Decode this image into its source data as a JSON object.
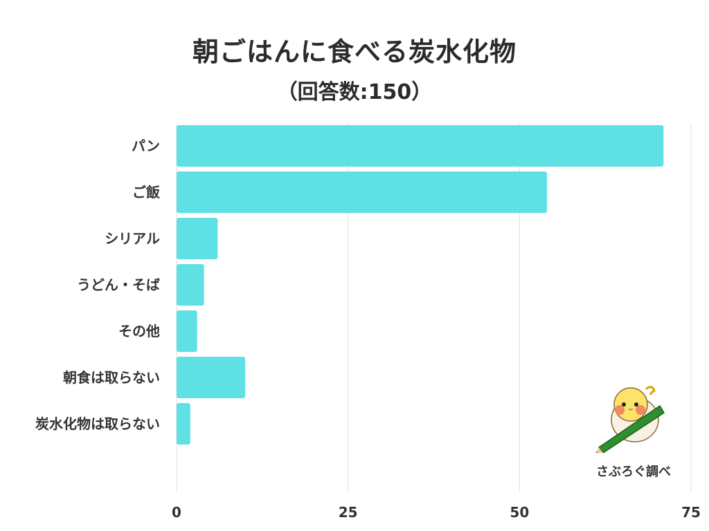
{
  "header": {
    "title": "朝ごはんに食べる炭水化物",
    "subtitle": "（回答数:150）"
  },
  "credit": "さぶろぐ調べ",
  "colors": {
    "bar": "#5ee0e4",
    "grid": "#e0e0e0",
    "text": "#333333"
  },
  "chart_data": {
    "type": "bar",
    "orientation": "horizontal",
    "categories": [
      "パン",
      "ご飯",
      "シリアル",
      "うどん・そば",
      "その他",
      "朝食は取らない",
      "炭水化物は取らない"
    ],
    "values": [
      71,
      54,
      6,
      4,
      3,
      10,
      2
    ],
    "title": "朝ごはんに食べる炭水化物",
    "subtitle": "（回答数:150）",
    "xlim": [
      0,
      75
    ],
    "xticks": [
      0,
      25,
      50,
      75
    ],
    "grid": true
  }
}
